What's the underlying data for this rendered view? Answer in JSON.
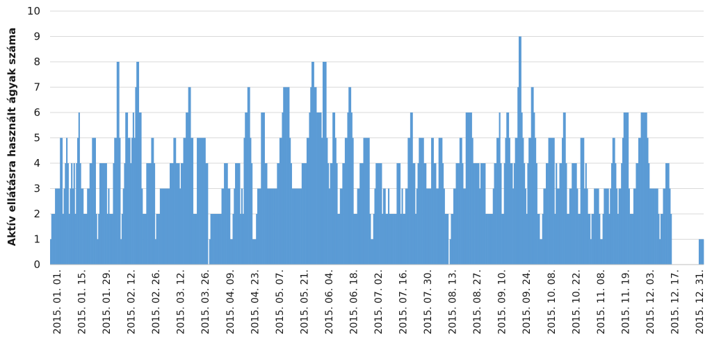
{
  "chart_data": {
    "type": "bar",
    "title": "",
    "xlabel": "",
    "ylabel": "Aktív ellátásra használt ágyak száma",
    "ylim": [
      0,
      10
    ],
    "yticks": [
      0,
      1,
      2,
      3,
      4,
      5,
      6,
      7,
      8,
      9,
      10
    ],
    "grid": true,
    "legend": "none",
    "x_tick_labels": [
      "2015. 01. 01.",
      "2015. 01. 15.",
      "2015. 01. 29.",
      "2015. 02. 12.",
      "2015. 02. 26.",
      "2015. 03. 12.",
      "2015. 03. 26.",
      "2015. 04. 09.",
      "2015. 04. 23.",
      "2015. 05. 07.",
      "2015. 05. 21.",
      "2015. 06. 04.",
      "2015. 06. 18.",
      "2015. 07. 02.",
      "2015. 07. 16.",
      "2015. 07. 30.",
      "2015. 08. 13.",
      "2015. 08. 27.",
      "2015. 09. 10.",
      "2015. 09. 24.",
      "2015. 10. 08.",
      "2015. 10. 22.",
      "2015. 11. 08.",
      "2015. 11. 19.",
      "2015. 12. 03.",
      "2015. 12. 17.",
      "2015. 12. 31."
    ],
    "x_start": "2015-01-01",
    "x_end": "2015-12-31",
    "bar_color": "#5b9bd5",
    "values": [
      1,
      2,
      2,
      2,
      3,
      3,
      3,
      3,
      5,
      5,
      2,
      3,
      4,
      5,
      4,
      2,
      3,
      4,
      3,
      4,
      2,
      4,
      5,
      6,
      4,
      3,
      3,
      2,
      2,
      2,
      3,
      3,
      4,
      4,
      5,
      5,
      5,
      2,
      1,
      2,
      4,
      4,
      4,
      4,
      4,
      4,
      2,
      3,
      2,
      2,
      2,
      4,
      5,
      5,
      8,
      8,
      5,
      1,
      2,
      3,
      4,
      6,
      6,
      5,
      5,
      4,
      5,
      6,
      5,
      7,
      8,
      8,
      6,
      6,
      3,
      2,
      2,
      2,
      4,
      4,
      4,
      4,
      5,
      5,
      4,
      1,
      2,
      2,
      2,
      3,
      3,
      3,
      3,
      3,
      3,
      3,
      3,
      4,
      4,
      4,
      5,
      5,
      4,
      4,
      4,
      3,
      4,
      4,
      5,
      5,
      6,
      6,
      7,
      7,
      5,
      5,
      2,
      2,
      2,
      5,
      5,
      5,
      5,
      5,
      5,
      5,
      4,
      4,
      0,
      1,
      2,
      2,
      2,
      2,
      2,
      2,
      2,
      2,
      2,
      3,
      3,
      4,
      4,
      4,
      3,
      3,
      1,
      1,
      2,
      3,
      4,
      4,
      4,
      4,
      2,
      3,
      2,
      5,
      6,
      6,
      7,
      7,
      5,
      4,
      1,
      1,
      1,
      2,
      3,
      3,
      3,
      6,
      6,
      6,
      4,
      4,
      3,
      3,
      3,
      3,
      3,
      3,
      3,
      3,
      4,
      4,
      5,
      5,
      6,
      7,
      7,
      7,
      7,
      7,
      5,
      4,
      3,
      3,
      3,
      3,
      3,
      3,
      3,
      3,
      4,
      4,
      4,
      4,
      5,
      5,
      6,
      7,
      8,
      8,
      7,
      7,
      6,
      6,
      6,
      6,
      5,
      8,
      8,
      8,
      5,
      4,
      3,
      4,
      4,
      6,
      6,
      5,
      4,
      2,
      2,
      3,
      3,
      4,
      4,
      5,
      5,
      6,
      7,
      7,
      6,
      5,
      2,
      2,
      2,
      3,
      3,
      4,
      4,
      4,
      5,
      5,
      5,
      5,
      5,
      2,
      1,
      1,
      2,
      3,
      4,
      4,
      4,
      4,
      4,
      2,
      3,
      3,
      2,
      2,
      3,
      2,
      2,
      2,
      2,
      2,
      2,
      4,
      4,
      4,
      2,
      3,
      2,
      2,
      3,
      3,
      5,
      5,
      6,
      6,
      4,
      4,
      2,
      3,
      4,
      5,
      5,
      5,
      5,
      4,
      4,
      3,
      3,
      3,
      3,
      5,
      5,
      4,
      4,
      3,
      3,
      5,
      5,
      5,
      4,
      3,
      2,
      2,
      2,
      0,
      1,
      2,
      2,
      3,
      3,
      4,
      4,
      4,
      5,
      5,
      4,
      3,
      3,
      6,
      6,
      6,
      6,
      6,
      5,
      4,
      4,
      4,
      4,
      4,
      3,
      4,
      4,
      4,
      4,
      2,
      2,
      2,
      2,
      2,
      2,
      3,
      4,
      4,
      5,
      5,
      6,
      4,
      2,
      2,
      4,
      5,
      6,
      6,
      5,
      4,
      4,
      3,
      4,
      5,
      5,
      7,
      9,
      9,
      6,
      5,
      4,
      3,
      2,
      4,
      5,
      5,
      7,
      7,
      6,
      5,
      4,
      2,
      2,
      1,
      1,
      2,
      3,
      3,
      4,
      4,
      5,
      5,
      5,
      5,
      5,
      2,
      4,
      3,
      3,
      4,
      4,
      5,
      6,
      6,
      4,
      2,
      2,
      3,
      3,
      4,
      4,
      4,
      4,
      3,
      2,
      2,
      5,
      5,
      5,
      3,
      4,
      3,
      2,
      2,
      1,
      2,
      2,
      3,
      3,
      3,
      3,
      2,
      1,
      1,
      2,
      3,
      3,
      3,
      3,
      2,
      3,
      4,
      5,
      5,
      4,
      3,
      2,
      3,
      3,
      4,
      5,
      6,
      6,
      6,
      6,
      3,
      2,
      2,
      2,
      3,
      3,
      4,
      4,
      5,
      5,
      6,
      6,
      6,
      6,
      6,
      5,
      4,
      3,
      3,
      3,
      3,
      3,
      3,
      3,
      2,
      1,
      2,
      2,
      3,
      3,
      4,
      4,
      4,
      3,
      2,
      0,
      0,
      0,
      0,
      0,
      0,
      0,
      0,
      0,
      0,
      0,
      0,
      0,
      0,
      0,
      0,
      0,
      0,
      0,
      0,
      0,
      0,
      1,
      1,
      1,
      1
    ]
  }
}
